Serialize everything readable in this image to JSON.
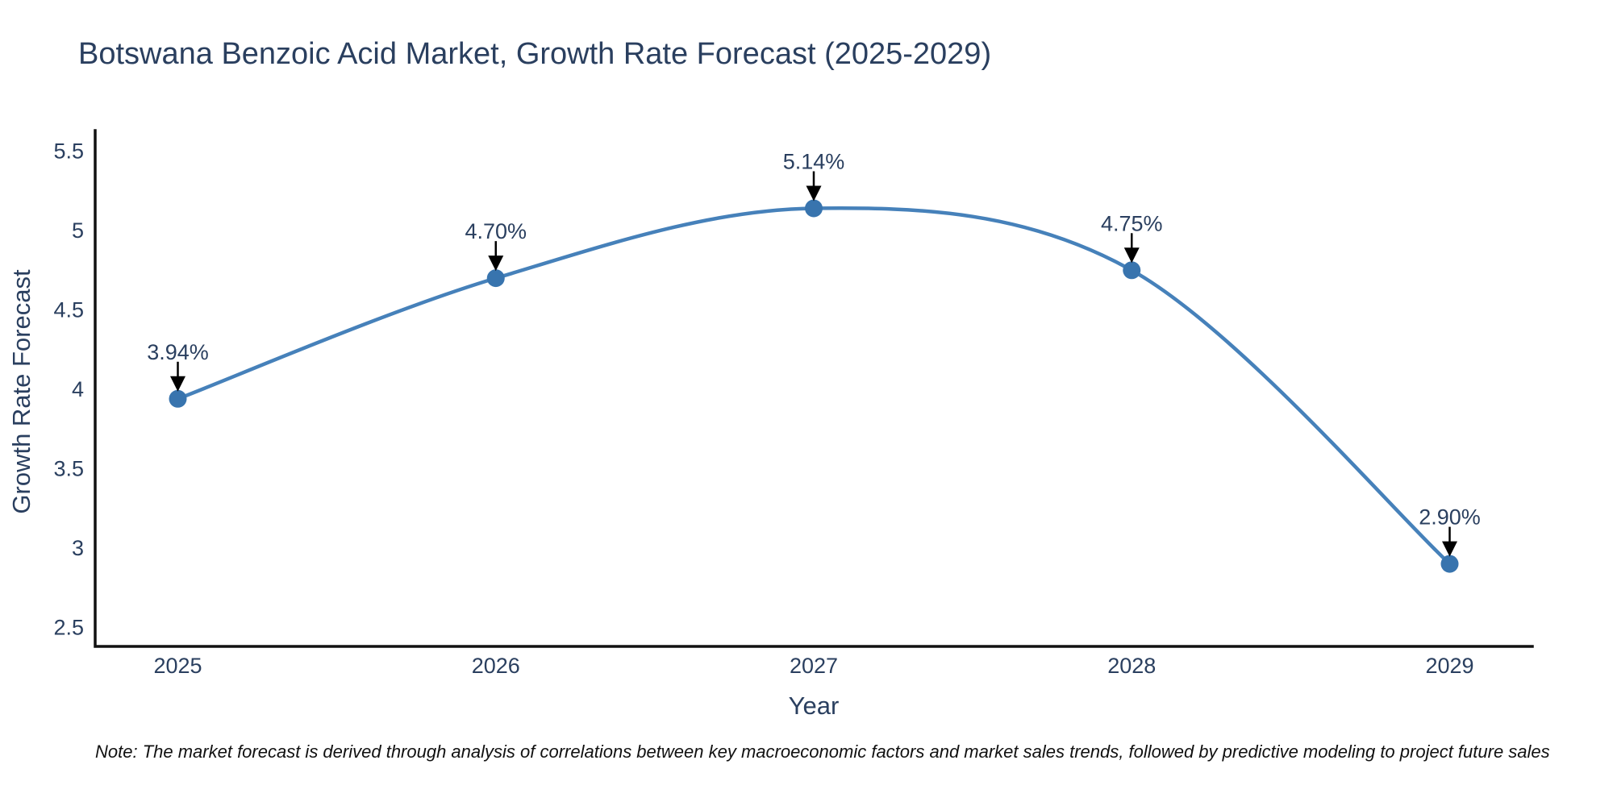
{
  "title": "Botswana Benzoic Acid Market, Growth Rate Forecast (2025-2029)",
  "note": "Note: The market forecast is derived through analysis of correlations between key macroeconomic factors and market sales trends, followed by predictive modeling to project future sales",
  "colors": {
    "text": "#2a3f5f",
    "axis": "#111111",
    "line": "#4681ba",
    "marker": "#3874ae",
    "arrow": "#000000",
    "note_text": "#111111",
    "background": "#ffffff"
  },
  "chart_data": {
    "type": "line",
    "title": "Botswana Benzoic Acid Market, Growth Rate Forecast (2025-2029)",
    "xlabel": "Year",
    "ylabel": "Growth Rate Forecast",
    "x": [
      2025,
      2026,
      2027,
      2028,
      2029
    ],
    "series": [
      {
        "name": "Growth Rate Forecast",
        "values": [
          3.94,
          4.7,
          5.14,
          4.75,
          2.9
        ]
      }
    ],
    "point_labels": [
      "3.94%",
      "4.70%",
      "5.14%",
      "4.75%",
      "2.90%"
    ],
    "xtick_labels": [
      "2025",
      "2026",
      "2027",
      "2028",
      "2029"
    ],
    "yticks": [
      2.5,
      3,
      3.5,
      4,
      4.5,
      5,
      5.5
    ],
    "ytick_labels": [
      "2.5",
      "3",
      "3.5",
      "4",
      "4.5",
      "5",
      "5.5"
    ],
    "xlim": [
      2024.74,
      2029.26
    ],
    "ylim": [
      2.38,
      5.63
    ],
    "grid": false,
    "legend": "none",
    "line_shape": "spline"
  }
}
